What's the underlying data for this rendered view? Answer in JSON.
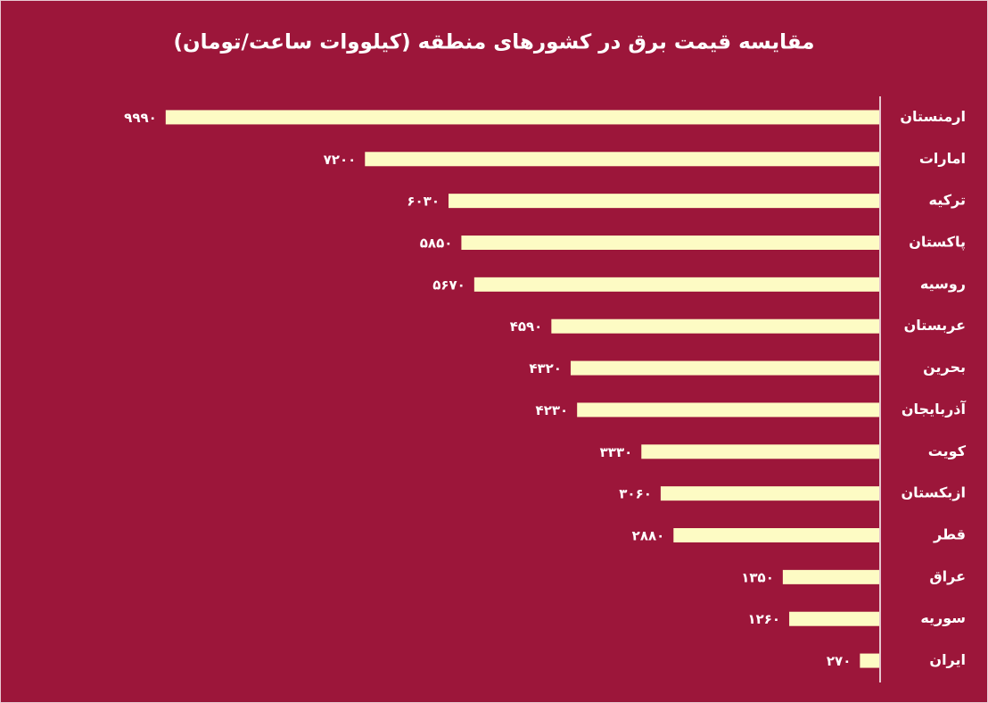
{
  "chart_data": {
    "type": "hbar",
    "title": "مقایسه قیمت برق در کشورهای منطقه (کیلووات ساعت/تومان)",
    "categories": [
      "ارمنستان",
      "امارات",
      "ترکیه",
      "پاکستان",
      "روسیه",
      "عربستان",
      "بحرین",
      "آذربایجان",
      "کویت",
      "ازبکستان",
      "قطر",
      "عراق",
      "سوریه",
      "ایران"
    ],
    "values": [
      9990,
      7200,
      6030,
      5850,
      5670,
      4590,
      4320,
      4230,
      3330,
      3060,
      2880,
      1350,
      1260,
      270
    ],
    "value_labels": [
      "۹۹۹۰",
      "۷۲۰۰",
      "۶۰۳۰",
      "۵۸۵۰",
      "۵۶۷۰",
      "۴۵۹۰",
      "۴۳۲۰",
      "۴۲۳۰",
      "۳۳۳۰",
      "۳۰۶۰",
      "۲۸۸۰",
      "۱۳۵۰",
      "۱۲۶۰",
      "۲۷۰"
    ],
    "color": "#fdfbc4",
    "xlim": [
      0,
      10000
    ]
  }
}
